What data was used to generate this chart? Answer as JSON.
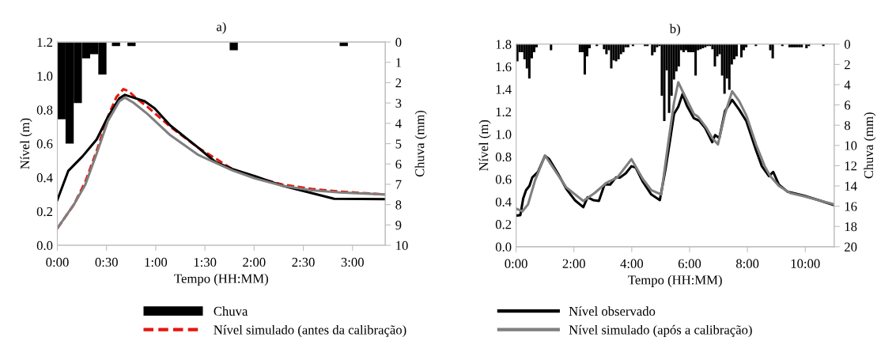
{
  "chart_data": [
    {
      "type": "line",
      "title": "a)",
      "xlabel": "Tempo (HH:MM)",
      "ylabel": "Nível (m)",
      "y2label": "Chuva (mm)",
      "xlim": [
        0,
        3.333
      ],
      "xticks": [
        {
          "value": 0,
          "label": "0:00"
        },
        {
          "value": 0.5,
          "label": "0:30"
        },
        {
          "value": 1,
          "label": "1:00"
        },
        {
          "value": 1.5,
          "label": "1:30"
        },
        {
          "value": 2,
          "label": "2:00"
        },
        {
          "value": 2.5,
          "label": "2:30"
        },
        {
          "value": 3,
          "label": "3:00"
        }
      ],
      "ylim": [
        0,
        1.2
      ],
      "yticks": [
        {
          "value": 0,
          "label": "0.0"
        },
        {
          "value": 0.2,
          "label": "0.2"
        },
        {
          "value": 0.4,
          "label": "0.4"
        },
        {
          "value": 0.6,
          "label": "0.6"
        },
        {
          "value": 0.8,
          "label": "0.8"
        },
        {
          "value": 1.0,
          "label": "1.0"
        },
        {
          "value": 1.2,
          "label": "1.2"
        }
      ],
      "y2lim": [
        10,
        0
      ],
      "y2ticks": [
        0,
        1,
        2,
        3,
        4,
        5,
        6,
        7,
        8,
        9,
        10
      ],
      "legend": "bottom",
      "grid": false,
      "series": [
        {
          "name": "Chuva",
          "type": "bar",
          "axis": "y2",
          "color": "#000000",
          "x": [
            0.042,
            0.125,
            0.208,
            0.292,
            0.375,
            0.458,
            0.596,
            0.754,
            1.793,
            2.911
          ],
          "values": [
            3.8,
            5.0,
            3.0,
            0.8,
            0.6,
            1.6,
            0.2,
            0.2,
            0.4,
            0.2
          ]
        },
        {
          "name": "Nível simulado (antes da calibração)",
          "color": "#e3170d",
          "line_style": "dashed",
          "x": [
            0,
            0.17,
            0.284,
            0.4,
            0.514,
            0.6,
            0.672,
            0.73,
            0.802,
            0.917,
            1.147,
            1.434,
            1.779,
            2.009,
            2.296,
            2.583,
            2.871,
            3.333
          ],
          "values": [
            0.1,
            0.242,
            0.375,
            0.558,
            0.758,
            0.875,
            0.922,
            0.908,
            0.867,
            0.817,
            0.7,
            0.575,
            0.45,
            0.4,
            0.358,
            0.333,
            0.317,
            0.3
          ]
        },
        {
          "name": "Nível observado",
          "color": "#000000",
          "line_style": "solid",
          "x": [
            0,
            0.112,
            0.256,
            0.4,
            0.514,
            0.63,
            0.687,
            0.773,
            0.888,
            0.989,
            1.147,
            1.434,
            1.606,
            1.779,
            2.009,
            2.296,
            2.583,
            2.813,
            3.333
          ],
          "values": [
            0.267,
            0.44,
            0.525,
            0.625,
            0.758,
            0.867,
            0.888,
            0.872,
            0.85,
            0.808,
            0.708,
            0.575,
            0.492,
            0.45,
            0.408,
            0.35,
            0.308,
            0.275,
            0.272
          ]
        },
        {
          "name": "Nível simulado (após a calibração)",
          "color": "#7f7f7f",
          "line_style": "solid",
          "x": [
            0,
            0.17,
            0.284,
            0.4,
            0.514,
            0.63,
            0.687,
            0.773,
            0.917,
            1.147,
            1.434,
            1.779,
            2.009,
            2.296,
            2.583,
            2.871,
            3.333
          ],
          "values": [
            0.1,
            0.242,
            0.358,
            0.542,
            0.733,
            0.85,
            0.872,
            0.842,
            0.775,
            0.65,
            0.533,
            0.442,
            0.395,
            0.35,
            0.325,
            0.312,
            0.3
          ]
        }
      ]
    },
    {
      "type": "line",
      "title": "b)",
      "xlabel": "Tempo (HH:MM)",
      "ylabel": "Nível (m)",
      "y2label": "Chuva (mm)",
      "xlim": [
        0,
        11
      ],
      "xticks": [
        {
          "value": 0,
          "label": "0:00"
        },
        {
          "value": 2,
          "label": "2:00"
        },
        {
          "value": 4,
          "label": "4:00"
        },
        {
          "value": 6,
          "label": "6:00"
        },
        {
          "value": 8,
          "label": "8:00"
        },
        {
          "value": 10,
          "label": "10:00"
        }
      ],
      "ylim": [
        0,
        1.8
      ],
      "yticks": [
        {
          "value": 0,
          "label": "0.0"
        },
        {
          "value": 0.2,
          "label": "0.2"
        },
        {
          "value": 0.4,
          "label": "0.4"
        },
        {
          "value": 0.6,
          "label": "0.6"
        },
        {
          "value": 0.8,
          "label": "0.8"
        },
        {
          "value": 1.0,
          "label": "1.0"
        },
        {
          "value": 1.2,
          "label": "1.2"
        },
        {
          "value": 1.4,
          "label": "1.4"
        },
        {
          "value": 1.6,
          "label": "1.6"
        },
        {
          "value": 1.8,
          "label": "1.8"
        }
      ],
      "y2lim": [
        20,
        0
      ],
      "y2ticks": [
        0,
        2,
        4,
        6,
        8,
        10,
        12,
        14,
        16,
        18,
        20
      ],
      "grid": false,
      "series": [
        {
          "name": "Chuva",
          "type": "bar",
          "axis": "y2",
          "color": "#000000",
          "x": [
            0.042,
            0.125,
            0.208,
            0.292,
            0.375,
            0.458,
            0.542,
            0.625,
            0.708,
            1.208,
            2.208,
            2.292,
            2.375,
            2.458,
            2.542,
            2.792,
            3.042,
            3.125,
            3.208,
            3.292,
            3.375,
            3.458,
            3.542,
            3.625,
            3.708,
            3.792,
            3.875,
            4.042,
            4.458,
            4.542,
            4.708,
            4.792,
            4.875,
            4.958,
            5.042,
            5.125,
            5.208,
            5.292,
            5.375,
            5.458,
            5.542,
            5.625,
            5.708,
            5.792,
            5.875,
            5.958,
            6.042,
            6.125,
            6.208,
            6.292,
            6.375,
            6.458,
            6.542,
            6.625,
            6.708,
            6.792,
            6.875,
            6.958,
            7.042,
            7.125,
            7.208,
            7.292,
            7.375,
            7.458,
            7.542,
            7.625,
            7.792,
            7.875,
            7.958,
            8.292,
            8.792,
            8.875,
            9.208,
            9.458,
            9.542,
            9.625,
            9.708,
            9.792,
            9.875,
            10.042,
            10.125,
            10.625
          ],
          "values": [
            1.7,
            0.8,
            0.8,
            1.5,
            2.4,
            3.4,
            1.4,
            0.8,
            0.3,
            0.6,
            0.8,
            0.8,
            3.0,
            1.2,
            0.4,
            0.2,
            0.5,
            1.0,
            0.6,
            2.4,
            1.6,
            1.7,
            1.5,
            1.0,
            0.8,
            0.3,
            0.3,
            0.2,
            0.2,
            0.2,
            1.1,
            0.8,
            0.3,
            0.2,
            5.1,
            7.6,
            2.6,
            6.8,
            5.1,
            3.5,
            2.7,
            2.2,
            0.6,
            0.8,
            0.6,
            0.8,
            0.8,
            0.8,
            3.1,
            0.6,
            0.5,
            0.4,
            0.3,
            0.2,
            0.2,
            0.5,
            2.2,
            1.2,
            1.0,
            3.1,
            4.9,
            3.4,
            4.5,
            2.0,
            1.5,
            1.2,
            1.3,
            0.6,
            0.3,
            0.2,
            0.6,
            1.4,
            0.2,
            0.3,
            0.3,
            0.3,
            0.3,
            0.3,
            0.3,
            0.4,
            0.2,
            0.2
          ]
        },
        {
          "name": "Nível observado",
          "color": "#000000",
          "line_style": "solid",
          "x": [
            0,
            0.147,
            0.245,
            0.343,
            0.461,
            0.559,
            0.755,
            1.0,
            1.147,
            1.441,
            1.735,
            2.029,
            2.324,
            2.471,
            2.667,
            2.863,
            3.059,
            3.255,
            3.451,
            3.598,
            3.794,
            3.99,
            4.137,
            4.382,
            4.676,
            4.971,
            5.167,
            5.314,
            5.461,
            5.608,
            5.755,
            5.902,
            6.147,
            6.343,
            6.539,
            6.784,
            6.882,
            7.029,
            7.225,
            7.471,
            7.716,
            7.961,
            8.304,
            8.5,
            8.745,
            8.892,
            9.088,
            9.382,
            9.971,
            10.461,
            11.0
          ],
          "values": [
            0.276,
            0.281,
            0.427,
            0.502,
            0.54,
            0.615,
            0.665,
            0.808,
            0.778,
            0.653,
            0.515,
            0.414,
            0.351,
            0.439,
            0.414,
            0.407,
            0.552,
            0.552,
            0.615,
            0.615,
            0.653,
            0.715,
            0.703,
            0.577,
            0.464,
            0.414,
            0.69,
            0.929,
            1.18,
            1.243,
            1.356,
            1.255,
            1.142,
            1.117,
            1.054,
            0.929,
            0.992,
            0.966,
            1.205,
            1.305,
            1.218,
            1.117,
            0.853,
            0.715,
            0.627,
            0.665,
            0.552,
            0.49,
            0.452,
            0.414,
            0.369
          ]
        },
        {
          "name": "Nível simulado (após a calibração)",
          "color": "#7f7f7f",
          "line_style": "solid",
          "x": [
            0,
            0.216,
            0.412,
            0.657,
            1.0,
            1.343,
            1.735,
            2.324,
            2.716,
            3.108,
            3.5,
            3.99,
            4.382,
            4.676,
            5.02,
            5.265,
            5.461,
            5.608,
            5.853,
            6.147,
            6.294,
            6.588,
            6.784,
            6.98,
            7.225,
            7.471,
            7.716,
            7.961,
            8.304,
            8.598,
            8.794,
            9.088,
            9.48,
            9.971,
            11.0
          ],
          "values": [
            0.339,
            0.314,
            0.376,
            0.59,
            0.811,
            0.678,
            0.527,
            0.407,
            0.477,
            0.565,
            0.615,
            0.778,
            0.602,
            0.502,
            0.464,
            0.929,
            1.28,
            1.461,
            1.331,
            1.18,
            1.155,
            1.054,
            0.966,
            0.909,
            1.18,
            1.381,
            1.293,
            1.167,
            0.904,
            0.715,
            0.627,
            0.54,
            0.477,
            0.447,
            0.376
          ]
        }
      ]
    }
  ]
}
